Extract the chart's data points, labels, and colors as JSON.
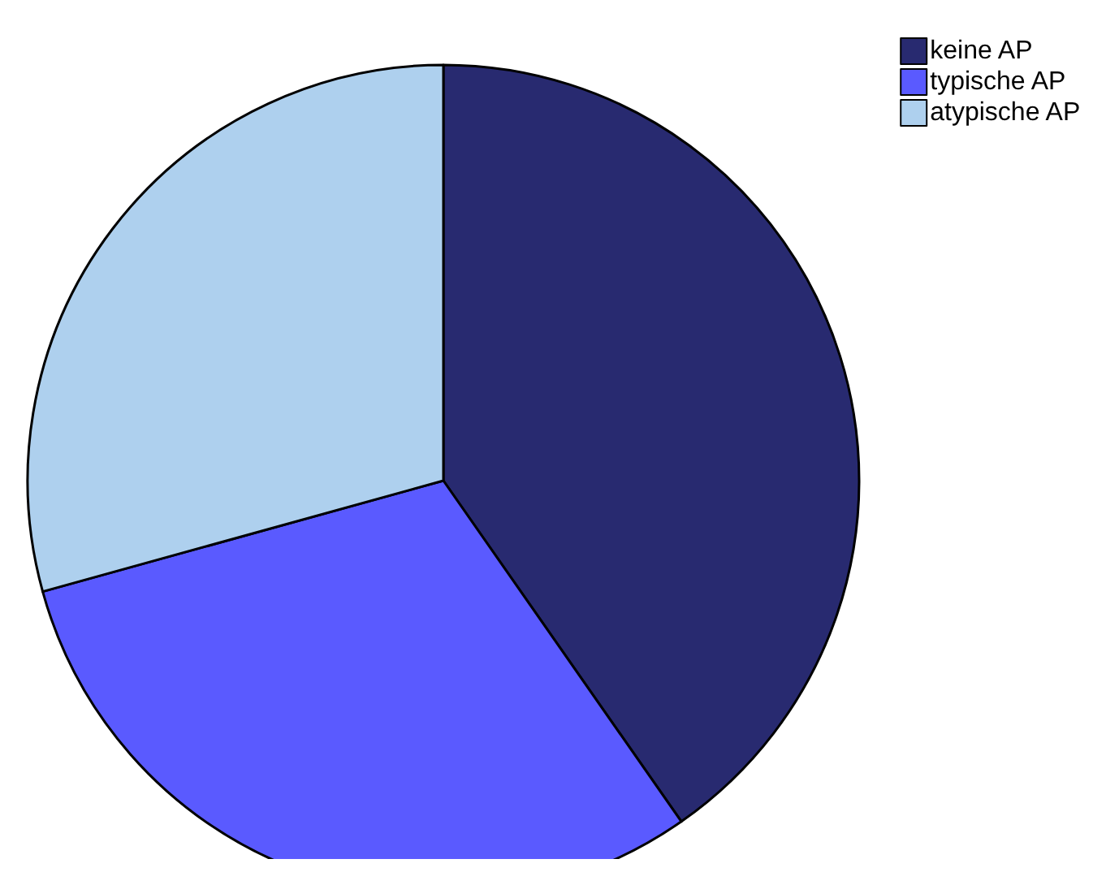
{
  "chart_data": {
    "type": "pie",
    "categories": [
      "keine AP",
      "typische AP",
      "atypische AP"
    ],
    "values": [
      40.3,
      30.4,
      29.3
    ],
    "colors": [
      "#282a70",
      "#5a5aff",
      "#aed0ee"
    ],
    "legend": "top right"
  }
}
